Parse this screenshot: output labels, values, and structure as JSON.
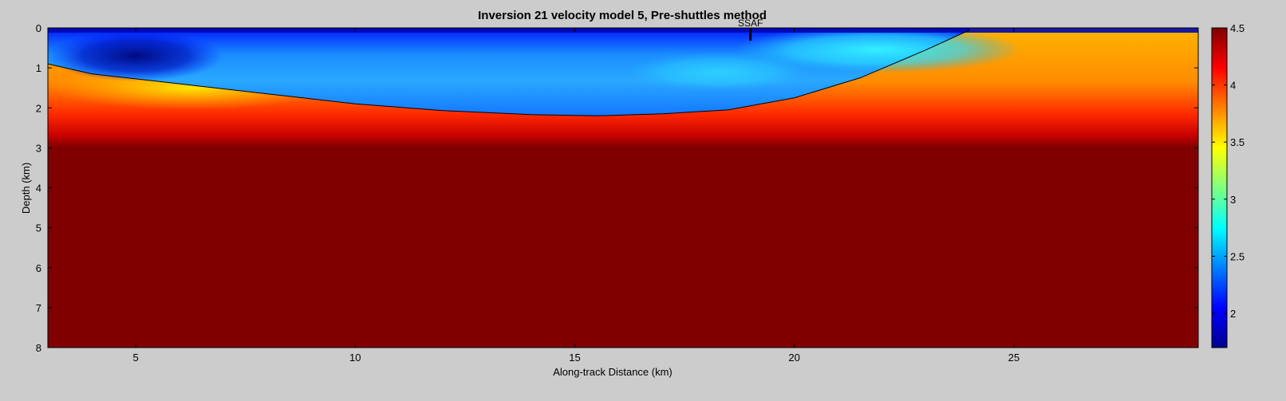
{
  "chart_data": {
    "type": "heatmap",
    "title": "Inversion 21 velocity model 5, Pre-shuttles method",
    "xlabel": "Along-track Distance (km)",
    "ylabel": "Depth (km)",
    "xlim": [
      3,
      29.2
    ],
    "ylim": [
      0,
      8
    ],
    "y_reversed": true,
    "x_ticks": [
      "5",
      "10",
      "15",
      "20",
      "25"
    ],
    "y_ticks": [
      "0",
      "1",
      "2",
      "3",
      "4",
      "5",
      "6",
      "7",
      "8"
    ],
    "colorbar": {
      "range": [
        1.7,
        4.5
      ],
      "ticks": [
        "2",
        "2.5",
        "3",
        "3.5",
        "4",
        "4.5"
      ],
      "colormap": "jet"
    },
    "basin_boundary": {
      "x": [
        3.0,
        4.0,
        6.0,
        8.0,
        10.0,
        12.0,
        14.0,
        15.5,
        17.0,
        18.5,
        20.0,
        21.5,
        23.0,
        24.0
      ],
      "depth": [
        0.9,
        1.15,
        1.4,
        1.65,
        1.9,
        2.07,
        2.17,
        2.2,
        2.15,
        2.05,
        1.75,
        1.25,
        0.55,
        0.05
      ]
    },
    "velocity_zones": {
      "basin_fill_range": [
        1.7,
        3.1
      ],
      "basement_gradient": [
        {
          "depth": 0.0,
          "v": 3.6
        },
        {
          "depth": 1.5,
          "v": 3.75
        },
        {
          "depth": 2.2,
          "v": 4.0
        },
        {
          "depth": 2.9,
          "v": 4.5
        }
      ],
      "halfspace_v": 4.5
    },
    "annotations": [
      {
        "label": "SSAF",
        "x": 19.0,
        "depth": 0.0
      }
    ]
  }
}
